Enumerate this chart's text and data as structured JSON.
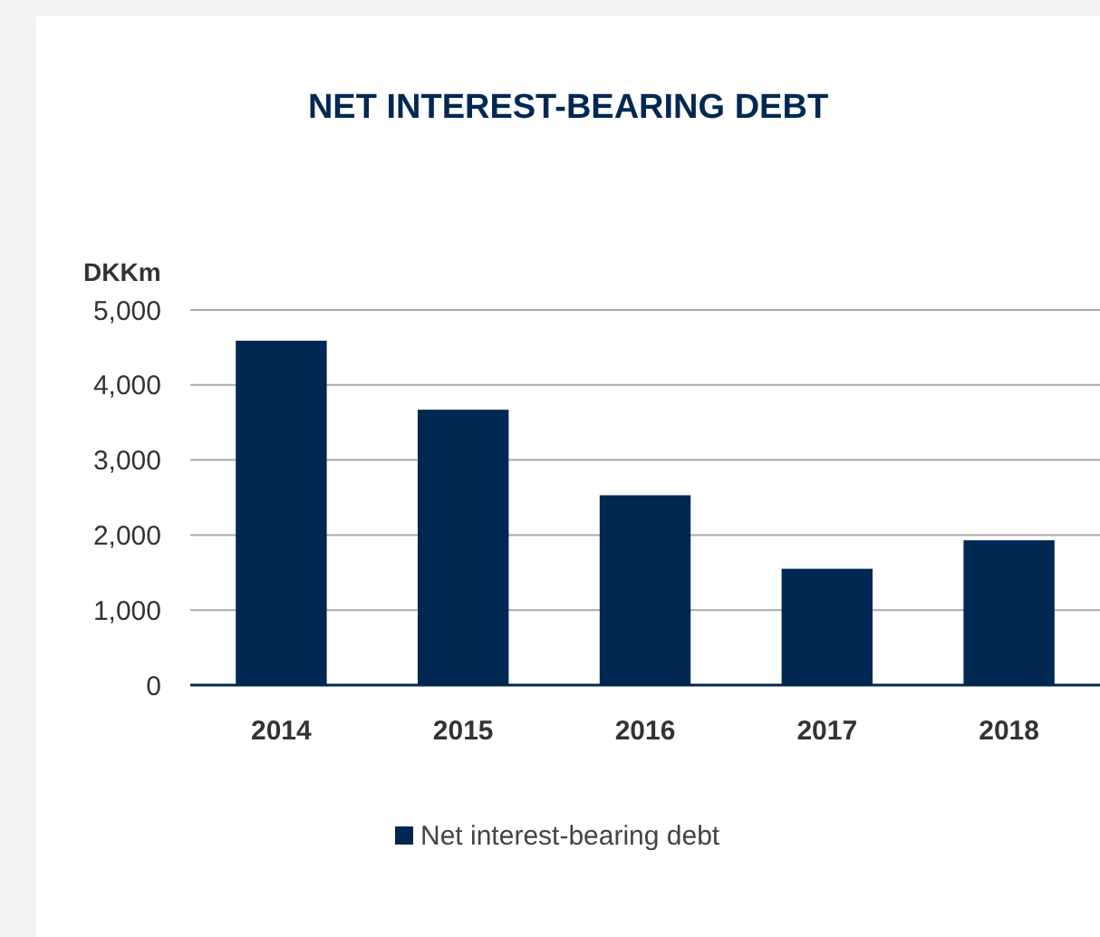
{
  "chart_data": {
    "type": "bar",
    "title": "NET INTEREST-BEARING DEBT",
    "ylabel": "DKKm",
    "categories": [
      "2014",
      "2015",
      "2016",
      "2017",
      "2018"
    ],
    "series": [
      {
        "name": "Net interest-bearing debt",
        "color": "#012852",
        "values": [
          4590,
          3670,
          2530,
          1550,
          1930
        ]
      }
    ],
    "ylim": [
      0,
      5000
    ],
    "yticks": [
      {
        "value": 0,
        "label": "0"
      },
      {
        "value": 1000,
        "label": "1,000"
      },
      {
        "value": 2000,
        "label": "2,000"
      },
      {
        "value": 3000,
        "label": "3,000"
      },
      {
        "value": 4000,
        "label": "4,000"
      },
      {
        "value": 5000,
        "label": "5,000"
      }
    ],
    "grid": "y",
    "legend": "bottom"
  }
}
